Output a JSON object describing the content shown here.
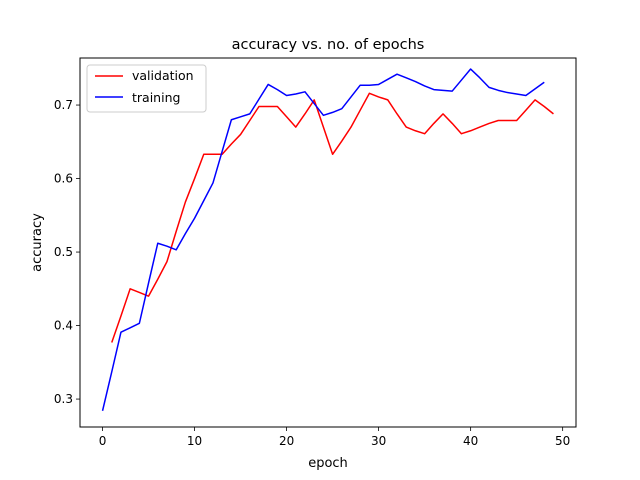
{
  "chart_data": {
    "type": "line",
    "title": "accuracy vs. no. of epochs",
    "xlabel": "epoch",
    "ylabel": "accuracy",
    "xlim": [
      -2.45,
      51.45
    ],
    "ylim": [
      0.262,
      0.764
    ],
    "xticks": [
      0,
      10,
      20,
      30,
      40,
      50
    ],
    "yticks": [
      0.3,
      0.4,
      0.5,
      0.6,
      0.7
    ],
    "xtick_labels": [
      "0",
      "10",
      "20",
      "30",
      "40",
      "50"
    ],
    "ytick_labels": [
      "0.3",
      "0.4",
      "0.5",
      "0.6",
      "0.7"
    ],
    "grid": false,
    "legend_position": "upper-left",
    "series": [
      {
        "name": "validation",
        "color": "#ff0000",
        "x": [
          1,
          2,
          3,
          4,
          5,
          6,
          7,
          8,
          9,
          10,
          11,
          12,
          13,
          14,
          15,
          16,
          17,
          18,
          19,
          20,
          21,
          22,
          23,
          24,
          25,
          26,
          27,
          28,
          29,
          30,
          31,
          32,
          33,
          34,
          35,
          36,
          37,
          38,
          39,
          40,
          41,
          42,
          43,
          44,
          45,
          46,
          47,
          48,
          49
        ],
        "y": [
          0.377,
          0.413,
          0.45,
          0.445,
          0.44,
          0.463,
          0.487,
          0.528,
          0.568,
          0.6,
          0.633,
          0.633,
          0.633,
          0.647,
          0.66,
          0.679,
          0.698,
          0.698,
          0.698,
          0.684,
          0.67,
          0.688,
          0.707,
          0.67,
          0.633,
          0.651,
          0.67,
          0.693,
          0.716,
          0.711,
          0.707,
          0.688,
          0.67,
          0.665,
          0.661,
          0.675,
          0.688,
          0.675,
          0.661,
          0.665,
          0.67,
          0.675,
          0.679,
          0.679,
          0.679,
          0.693,
          0.707,
          0.698,
          0.688
        ]
      },
      {
        "name": "training",
        "color": "#0000ff",
        "x": [
          0,
          1,
          2,
          3,
          4,
          5,
          6,
          7,
          8,
          9,
          10,
          11,
          12,
          13,
          14,
          15,
          16,
          17,
          18,
          19,
          20,
          21,
          22,
          23,
          24,
          25,
          26,
          27,
          28,
          29,
          30,
          31,
          32,
          33,
          34,
          35,
          36,
          37,
          38,
          39,
          40,
          41,
          42,
          43,
          44,
          45,
          46,
          47,
          48
        ],
        "y": [
          0.284,
          0.337,
          0.391,
          0.397,
          0.403,
          0.458,
          0.512,
          0.508,
          0.503,
          0.525,
          0.546,
          0.57,
          0.594,
          0.637,
          0.68,
          0.684,
          0.688,
          0.708,
          0.728,
          0.721,
          0.713,
          0.715,
          0.718,
          0.702,
          0.686,
          0.69,
          0.695,
          0.711,
          0.727,
          0.727,
          0.728,
          0.735,
          0.742,
          0.737,
          0.732,
          0.726,
          0.721,
          0.72,
          0.719,
          0.734,
          0.749,
          0.737,
          0.724,
          0.72,
          0.717,
          0.715,
          0.713,
          0.722,
          0.731
        ]
      }
    ]
  }
}
